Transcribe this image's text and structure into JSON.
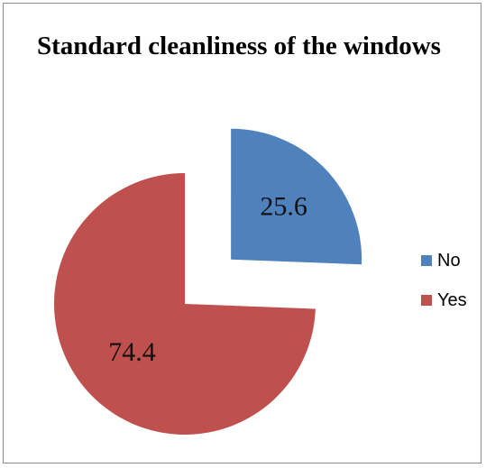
{
  "chart_data": {
    "type": "pie",
    "title": "Standard cleanliness of the windows",
    "slices": [
      {
        "label": "No",
        "value": 25.6,
        "data_label": "25.6",
        "color": "#4f81bd",
        "exploded": true
      },
      {
        "label": "Yes",
        "value": 74.4,
        "data_label": "74.4",
        "color": "#c0504d",
        "exploded": false
      }
    ],
    "legend_position": "right",
    "start_angle_deg": 0,
    "direction": "clockwise"
  }
}
